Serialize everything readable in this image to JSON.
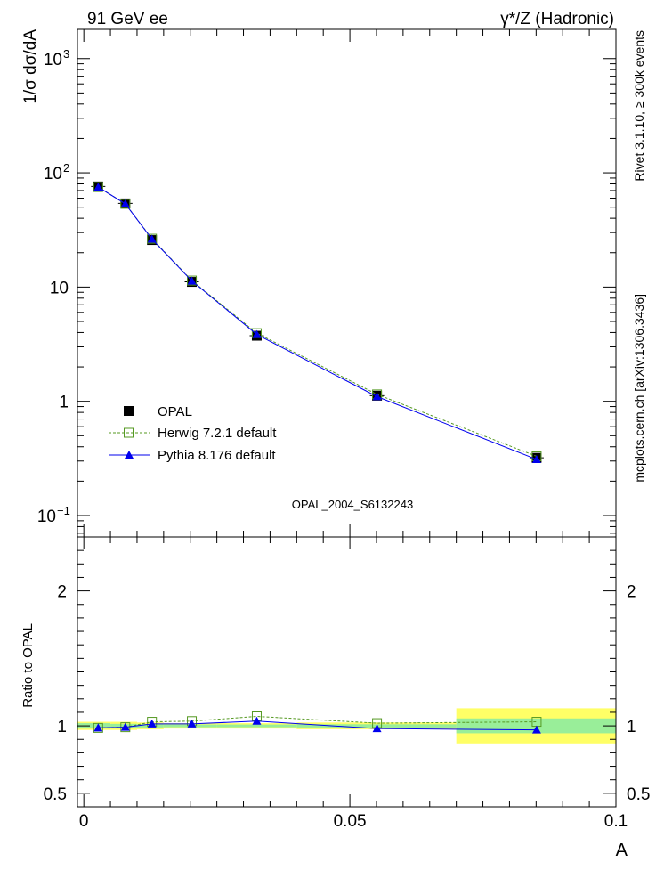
{
  "header": {
    "left": "91 GeV ee",
    "right": "γ*/Z (Hadronic)"
  },
  "side": {
    "rivet": "Rivet 3.1.10, ≥ 300k events",
    "mcplots": "mcplots.cern.ch [arXiv:1306.3436]"
  },
  "colors": {
    "opal": "#000000",
    "herwig": "#559922",
    "pythia": "#0000ee",
    "band_inner": "#99ee99",
    "band_outer": "#ffff66"
  },
  "chart_data": [
    {
      "type": "line",
      "name": "main",
      "ylabel": "1/σ dσ/dA",
      "yscale": "log",
      "xlim": [
        -0.0012,
        0.1
      ],
      "ylim": [
        0.065,
        1800
      ],
      "yticks": [
        {
          "value": 0.1,
          "label": "10",
          "exp": "−1"
        },
        {
          "value": 1,
          "label": "1",
          "exp": ""
        },
        {
          "value": 10,
          "label": "10",
          "exp": ""
        },
        {
          "value": 100,
          "label": "10",
          "exp": "2"
        },
        {
          "value": 1000,
          "label": "10",
          "exp": "3"
        }
      ],
      "watermark": "OPAL_2004_S6132243",
      "legend": {
        "placement": "bottom-left",
        "entries": [
          "OPAL",
          "Herwig 7.2.1 default",
          "Pythia 8.176 default"
        ]
      },
      "series": [
        {
          "name": "OPAL",
          "style": "square",
          "x": [
            0.0027,
            0.0078,
            0.0128,
            0.0203,
            0.0325,
            0.0551,
            0.0851
          ],
          "y": [
            76,
            54,
            25.8,
            11.1,
            3.75,
            1.12,
            0.32
          ]
        },
        {
          "name": "Herwig 7.2.1 default",
          "style": "open-square-dashed",
          "x": [
            0.0027,
            0.0078,
            0.0128,
            0.0203,
            0.0325,
            0.0551,
            0.0851
          ],
          "y": [
            75,
            53.5,
            26.5,
            11.4,
            3.95,
            1.15,
            0.33
          ]
        },
        {
          "name": "Pythia 8.176 default",
          "style": "triangle-solid",
          "x": [
            0.0027,
            0.0078,
            0.0128,
            0.0203,
            0.0325,
            0.0551,
            0.0851
          ],
          "y": [
            75,
            53.5,
            26.3,
            11.3,
            3.85,
            1.1,
            0.31
          ]
        }
      ]
    },
    {
      "type": "line",
      "name": "ratio",
      "ylabel": "Ratio to OPAL",
      "xlabel": "A",
      "xlim": [
        -0.0012,
        0.1
      ],
      "ylim": [
        0.4,
        2.4
      ],
      "yticks": [
        {
          "value": 0.5,
          "label": "0.5"
        },
        {
          "value": 1,
          "label": "1"
        },
        {
          "value": 2,
          "label": "2"
        }
      ],
      "xticks": [
        {
          "value": 0,
          "label": "0"
        },
        {
          "value": 0.05,
          "label": "0.05"
        },
        {
          "value": 0.1,
          "label": "0.1"
        }
      ],
      "bands": [
        {
          "x0": -0.0012,
          "x1": 0.005,
          "inner": 0.02,
          "outer": 0.03
        },
        {
          "x0": 0.005,
          "x1": 0.01,
          "inner": 0.015,
          "outer": 0.03
        },
        {
          "x0": 0.01,
          "x1": 0.015,
          "inner": 0.012,
          "outer": 0.025
        },
        {
          "x0": 0.015,
          "x1": 0.025,
          "inner": 0.01,
          "outer": 0.02
        },
        {
          "x0": 0.025,
          "x1": 0.04,
          "inner": 0.01,
          "outer": 0.02
        },
        {
          "x0": 0.04,
          "x1": 0.07,
          "inner": 0.012,
          "outer": 0.025
        },
        {
          "x0": 0.07,
          "x1": 0.1,
          "inner": 0.055,
          "outer": 0.13
        }
      ],
      "series": [
        {
          "name": "Herwig 7.2.1 default",
          "x": [
            0.0027,
            0.0078,
            0.0128,
            0.0203,
            0.0325,
            0.0551,
            0.0851
          ],
          "y": [
            0.985,
            0.99,
            1.03,
            1.035,
            1.07,
            1.02,
            1.03
          ]
        },
        {
          "name": "Pythia 8.176 default",
          "x": [
            0.0027,
            0.0078,
            0.0128,
            0.0203,
            0.0325,
            0.0551,
            0.0851
          ],
          "y": [
            0.985,
            0.99,
            1.015,
            1.015,
            1.035,
            0.98,
            0.97
          ]
        }
      ]
    }
  ]
}
